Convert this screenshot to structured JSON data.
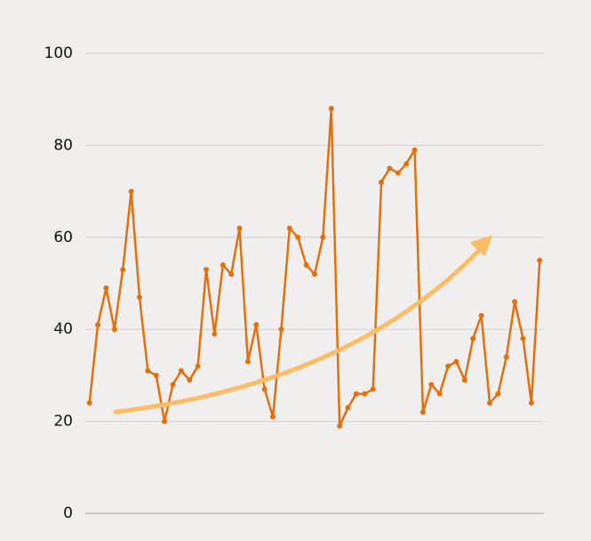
{
  "chart_data": {
    "type": "line",
    "categories": [
      null,
      null,
      null,
      null,
      null,
      null,
      null,
      null,
      null,
      null,
      null,
      null,
      null,
      null,
      null,
      null,
      null,
      null,
      null,
      null,
      null,
      null,
      null,
      null,
      null,
      null,
      null,
      null,
      null,
      null,
      null,
      null,
      null,
      null,
      null,
      null,
      null,
      null,
      null,
      null,
      null,
      null,
      null,
      null,
      null,
      null,
      null,
      null,
      null,
      null,
      null,
      null,
      null,
      null,
      null
    ],
    "series": [
      {
        "color": "#e2700f",
        "values": [
          24,
          41,
          49,
          40,
          53,
          70,
          47,
          31,
          30,
          20,
          28,
          31,
          29,
          32,
          53,
          39,
          54,
          52,
          62,
          33,
          41,
          27,
          21,
          40,
          62,
          60,
          54,
          52,
          60,
          88,
          19,
          23,
          26,
          26,
          27,
          72,
          75,
          74,
          76,
          79,
          22,
          28,
          26,
          32,
          33,
          29,
          38,
          43,
          24,
          26,
          34,
          46,
          38,
          24,
          55
        ]
      }
    ],
    "ylim": [
      0,
      100
    ],
    "yticks": [
      0,
      20,
      40,
      60,
      80,
      100
    ],
    "grid": true
  }
}
